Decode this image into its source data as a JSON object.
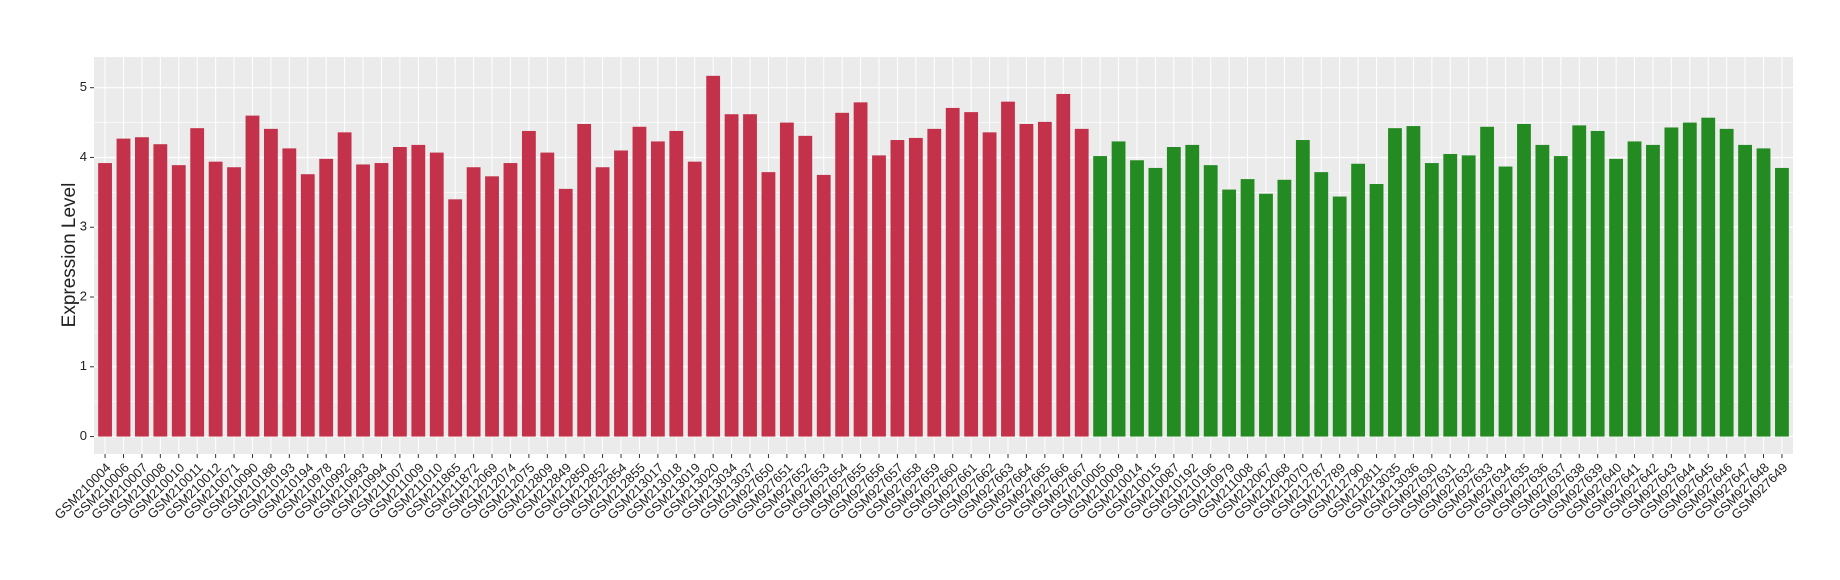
{
  "chart_data": {
    "type": "bar",
    "y_label": "Expression Level",
    "categories": [
      "GSM210004",
      "GSM210006",
      "GSM210007",
      "GSM210008",
      "GSM210010",
      "GSM210011",
      "GSM210012",
      "GSM210071",
      "GSM210090",
      "GSM210188",
      "GSM210193",
      "GSM210194",
      "GSM210978",
      "GSM210992",
      "GSM210993",
      "GSM210994",
      "GSM211007",
      "GSM211009",
      "GSM211010",
      "GSM211865",
      "GSM211872",
      "GSM212069",
      "GSM212074",
      "GSM212075",
      "GSM212809",
      "GSM212849",
      "GSM212850",
      "GSM212852",
      "GSM212854",
      "GSM212855",
      "GSM213017",
      "GSM213018",
      "GSM213019",
      "GSM213020",
      "GSM213034",
      "GSM213037",
      "GSM927650",
      "GSM927651",
      "GSM927652",
      "GSM927653",
      "GSM927654",
      "GSM927655",
      "GSM927656",
      "GSM927657",
      "GSM927658",
      "GSM927659",
      "GSM927660",
      "GSM927661",
      "GSM927662",
      "GSM927663",
      "GSM927664",
      "GSM927665",
      "GSM927666",
      "GSM927667",
      "GSM210005",
      "GSM210009",
      "GSM210014",
      "GSM210015",
      "GSM210087",
      "GSM210192",
      "GSM210196",
      "GSM210979",
      "GSM211008",
      "GSM212067",
      "GSM212068",
      "GSM212070",
      "GSM212787",
      "GSM212789",
      "GSM212790",
      "GSM212811",
      "GSM213035",
      "GSM213036",
      "GSM927630",
      "GSM927631",
      "GSM927632",
      "GSM927633",
      "GSM927634",
      "GSM927635",
      "GSM927636",
      "GSM927637",
      "GSM927638",
      "GSM927639",
      "GSM927640",
      "GSM927641",
      "GSM927642",
      "GSM927643",
      "GSM927644",
      "GSM927645",
      "GSM927646",
      "GSM927647",
      "GSM927648",
      "GSM927649"
    ],
    "values": [
      3.92,
      4.27,
      4.29,
      4.19,
      3.89,
      4.42,
      3.94,
      3.86,
      4.6,
      4.41,
      4.13,
      3.76,
      3.98,
      4.36,
      3.9,
      3.92,
      4.15,
      4.18,
      4.07,
      3.4,
      3.86,
      3.73,
      3.92,
      4.38,
      4.07,
      3.55,
      4.48,
      3.86,
      4.1,
      4.44,
      4.23,
      4.38,
      3.94,
      5.17,
      4.62,
      4.62,
      3.79,
      4.5,
      4.31,
      3.75,
      4.64,
      4.79,
      4.03,
      4.25,
      4.28,
      4.41,
      4.71,
      4.65,
      4.36,
      4.8,
      4.48,
      4.51,
      4.91,
      4.41,
      4.02,
      4.23,
      3.96,
      3.85,
      4.15,
      4.18,
      3.89,
      3.54,
      3.69,
      3.48,
      3.68,
      4.25,
      3.79,
      3.44,
      3.91,
      3.62,
      4.42,
      4.45,
      3.92,
      4.05,
      4.03,
      4.44,
      3.87,
      4.48,
      4.18,
      4.02,
      4.46,
      4.38,
      3.98,
      4.23,
      4.18,
      4.43,
      4.5,
      4.57,
      4.41,
      4.18,
      4.13,
      3.85
    ],
    "colors": [
      "#c3324a",
      "#c3324a",
      "#c3324a",
      "#c3324a",
      "#c3324a",
      "#c3324a",
      "#c3324a",
      "#c3324a",
      "#c3324a",
      "#c3324a",
      "#c3324a",
      "#c3324a",
      "#c3324a",
      "#c3324a",
      "#c3324a",
      "#c3324a",
      "#c3324a",
      "#c3324a",
      "#c3324a",
      "#c3324a",
      "#c3324a",
      "#c3324a",
      "#c3324a",
      "#c3324a",
      "#c3324a",
      "#c3324a",
      "#c3324a",
      "#c3324a",
      "#c3324a",
      "#c3324a",
      "#c3324a",
      "#c3324a",
      "#c3324a",
      "#c3324a",
      "#c3324a",
      "#c3324a",
      "#c3324a",
      "#c3324a",
      "#c3324a",
      "#c3324a",
      "#c3324a",
      "#c3324a",
      "#c3324a",
      "#c3324a",
      "#c3324a",
      "#c3324a",
      "#c3324a",
      "#c3324a",
      "#c3324a",
      "#c3324a",
      "#c3324a",
      "#c3324a",
      "#c3324a",
      "#c3324a",
      "#238b22",
      "#238b22",
      "#238b22",
      "#238b22",
      "#238b22",
      "#238b22",
      "#238b22",
      "#238b22",
      "#238b22",
      "#238b22",
      "#238b22",
      "#238b22",
      "#238b22",
      "#238b22",
      "#238b22",
      "#238b22",
      "#238b22",
      "#238b22",
      "#238b22",
      "#238b22",
      "#238b22",
      "#238b22",
      "#238b22",
      "#238b22",
      "#238b22",
      "#238b22",
      "#238b22",
      "#238b22",
      "#238b22",
      "#238b22",
      "#238b22",
      "#238b22",
      "#238b22",
      "#238b22",
      "#238b22",
      "#238b22",
      "#238b22",
      "#238b22"
    ],
    "ylim": [
      -0.25,
      5.44
    ],
    "yticks": [
      0,
      1,
      2,
      3,
      4,
      5
    ],
    "grid": true
  }
}
